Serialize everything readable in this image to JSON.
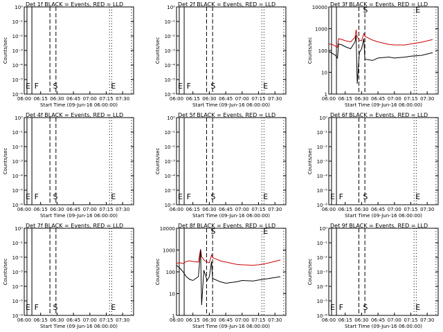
{
  "chart_data": [
    {
      "type": "line",
      "title": "Det 1f BLACK = Events, RED = LLD",
      "xlabel": "Start Time (09-Jun-16 06:00:00)",
      "ylabel": "Counts/sec",
      "yscale": "log",
      "ylim": [
        1e-06,
        1
      ],
      "ytick_labels": [
        "10⁰",
        "10⁻¹",
        "10⁻²",
        "10⁻³",
        "10⁻⁴",
        "10⁻⁵",
        "10⁻⁶"
      ],
      "ytick_values": [
        1,
        0.1,
        0.01,
        0.001,
        0.0001,
        1e-05,
        1e-06
      ],
      "xlim": [
        "06:00",
        "07:40"
      ],
      "xtick_labels": [
        "06:00",
        "06:15",
        "06:30",
        "06:45",
        "07:00",
        "07:15",
        "07:30"
      ],
      "markers": [
        {
          "label": "E",
          "time": "06:00"
        },
        {
          "label": "F",
          "time": "06:08"
        },
        {
          "label": "S",
          "time": "06:25"
        },
        {
          "label": "E",
          "time": "07:18"
        }
      ],
      "series": []
    },
    {
      "type": "line",
      "title": "Det 2f BLACK = Events, RED = LLD",
      "xlabel": "Start Time (09-Jun-16 06:00:00)",
      "ylabel": "Counts/sec",
      "yscale": "log",
      "ylim": [
        1e-06,
        1
      ],
      "ytick_labels": [
        "10⁰",
        "10⁻¹",
        "10⁻²",
        "10⁻³",
        "10⁻⁴",
        "10⁻⁵",
        "10⁻⁶"
      ],
      "ytick_values": [
        1,
        0.1,
        0.01,
        0.001,
        0.0001,
        1e-05,
        1e-06
      ],
      "xlim": [
        "06:00",
        "07:40"
      ],
      "xtick_labels": [
        "06:00",
        "06:15",
        "06:30",
        "06:45",
        "07:00",
        "07:15",
        "07:30"
      ],
      "markers": [
        {
          "label": "E",
          "time": "06:00"
        },
        {
          "label": "F",
          "time": "06:08"
        },
        {
          "label": "S",
          "time": "06:30"
        },
        {
          "label": "E",
          "time": "07:18"
        }
      ],
      "series": []
    },
    {
      "type": "line",
      "title": "Det 3f BLACK = Events, RED = LLD",
      "xlabel": "Start Time (09-Jun-16 06:00:00)",
      "ylabel": "Counts/sec",
      "yscale": "log",
      "ylim": [
        1,
        10000
      ],
      "ytick_labels": [
        "10000",
        "1000",
        "100",
        "10",
        "1"
      ],
      "ytick_values": [
        10000,
        1000,
        100,
        10,
        1
      ],
      "xlim": [
        "06:00",
        "07:40"
      ],
      "xtick_labels": [
        "06:00",
        "06:15",
        "06:30",
        "06:45",
        "07:00",
        "07:15",
        "07:30"
      ],
      "markers": [
        {
          "label": "S",
          "time": "06:30"
        },
        {
          "label": "E",
          "time": "07:18"
        }
      ],
      "series": [
        {
          "color": "#cc0000",
          "x": [
            "06:00",
            "06:03",
            "06:06",
            "06:08",
            "06:09",
            "06:12",
            "06:15",
            "06:20",
            "06:24",
            "06:25",
            "06:26",
            "06:28",
            "06:30",
            "06:32",
            "06:33",
            "06:40",
            "06:45",
            "06:55",
            "07:00",
            "07:10",
            "07:15",
            "07:25",
            "07:35"
          ],
          "values": [
            200,
            190,
            160,
            140,
            350,
            320,
            280,
            250,
            400,
            900,
            420,
            300,
            280,
            600,
            450,
            300,
            250,
            190,
            180,
            180,
            200,
            240,
            320
          ]
        },
        {
          "color": "#000000",
          "x": [
            "06:00",
            "06:03",
            "06:06",
            "06:08",
            "06:09",
            "06:12",
            "06:15",
            "06:20",
            "06:24",
            "06:25",
            "06:26",
            "06:28",
            "06:30",
            "06:32",
            "06:33",
            "06:40",
            "06:45",
            "06:55",
            "07:00",
            "07:10",
            "07:15",
            "07:25",
            "07:35"
          ],
          "values": [
            90,
            75,
            60,
            45,
            200,
            180,
            150,
            120,
            250,
            500,
            3,
            80,
            120,
            350,
            40,
            35,
            45,
            50,
            45,
            50,
            55,
            60,
            80
          ]
        }
      ]
    },
    {
      "type": "line",
      "title": "Det 4f BLACK = Events, RED = LLD",
      "xlabel": "Start Time (09-Jun-16 06:00:00)",
      "ylabel": "Counts/sec",
      "yscale": "log",
      "ylim": [
        1e-06,
        1
      ],
      "ytick_labels": [
        "10⁰",
        "10⁻¹",
        "10⁻²",
        "10⁻³",
        "10⁻⁴",
        "10⁻⁵",
        "10⁻⁶"
      ],
      "ytick_values": [
        1,
        0.1,
        0.01,
        0.001,
        0.0001,
        1e-05,
        1e-06
      ],
      "xlim": [
        "06:00",
        "07:40"
      ],
      "xtick_labels": [
        "06:00",
        "06:15",
        "06:30",
        "06:45",
        "07:00",
        "07:15",
        "07:30"
      ],
      "markers": [
        {
          "label": "E",
          "time": "06:00"
        },
        {
          "label": "F",
          "time": "06:08"
        },
        {
          "label": "S",
          "time": "06:25"
        },
        {
          "label": "E",
          "time": "07:18"
        }
      ],
      "series": []
    },
    {
      "type": "line",
      "title": "Det 5f BLACK = Events, RED = LLD",
      "xlabel": "Start Time (09-Jun-16 06:00:00)",
      "ylabel": "Counts/sec",
      "yscale": "log",
      "ylim": [
        1e-06,
        1
      ],
      "ytick_labels": [
        "10⁰",
        "10⁻¹",
        "10⁻²",
        "10⁻³",
        "10⁻⁴",
        "10⁻⁵",
        "10⁻⁶"
      ],
      "ytick_values": [
        1,
        0.1,
        0.01,
        0.001,
        0.0001,
        1e-05,
        1e-06
      ],
      "xlim": [
        "06:00",
        "07:40"
      ],
      "xtick_labels": [
        "06:00",
        "06:15",
        "06:30",
        "06:45",
        "07:00",
        "07:15",
        "07:30"
      ],
      "markers": [
        {
          "label": "E",
          "time": "06:00"
        },
        {
          "label": "F",
          "time": "06:08"
        },
        {
          "label": "S",
          "time": "06:30"
        },
        {
          "label": "E",
          "time": "07:18"
        }
      ],
      "series": []
    },
    {
      "type": "line",
      "title": "Det 6f BLACK = Events, RED = LLD",
      "xlabel": "Start Time (09-Jun-16 06:00:00)",
      "ylabel": "Counts/sec",
      "yscale": "log",
      "ylim": [
        1e-06,
        1
      ],
      "ytick_labels": [
        "10⁰",
        "10⁻¹",
        "10⁻²",
        "10⁻³",
        "10⁻⁴",
        "10⁻⁵",
        "10⁻⁶"
      ],
      "ytick_values": [
        1,
        0.1,
        0.01,
        0.001,
        0.0001,
        1e-05,
        1e-06
      ],
      "xlim": [
        "06:00",
        "07:40"
      ],
      "xtick_labels": [
        "06:00",
        "06:15",
        "06:30",
        "06:45",
        "07:00",
        "07:15",
        "07:30"
      ],
      "markers": [
        {
          "label": "E",
          "time": "06:00"
        },
        {
          "label": "F",
          "time": "06:08"
        },
        {
          "label": "S",
          "time": "06:30"
        },
        {
          "label": "E",
          "time": "07:18"
        }
      ],
      "series": []
    },
    {
      "type": "line",
      "title": "Det 7f BLACK = Events, RED = LLD",
      "xlabel": "Start Time (09-Jun-16 06:00:00)",
      "ylabel": "Counts/sec",
      "yscale": "log",
      "ylim": [
        1e-06,
        1
      ],
      "ytick_labels": [
        "10⁰",
        "10⁻¹",
        "10⁻²",
        "10⁻³",
        "10⁻⁴",
        "10⁻⁵",
        "10⁻⁶"
      ],
      "ytick_values": [
        1,
        0.1,
        0.01,
        0.001,
        0.0001,
        1e-05,
        1e-06
      ],
      "xlim": [
        "06:00",
        "07:40"
      ],
      "xtick_labels": [
        "06:00",
        "06:15",
        "06:30",
        "06:45",
        "07:00",
        "07:15",
        "07:30"
      ],
      "markers": [
        {
          "label": "E",
          "time": "06:00"
        },
        {
          "label": "F",
          "time": "06:08"
        },
        {
          "label": "S",
          "time": "06:25"
        },
        {
          "label": "E",
          "time": "07:18"
        }
      ],
      "series": []
    },
    {
      "type": "line",
      "title": "Det 8f BLACK = Events, RED = LLD",
      "xlabel": "Start Time (09-Jun-16 06:00:00)",
      "ylabel": "Counts/sec",
      "yscale": "log",
      "ylim": [
        1,
        10000
      ],
      "ytick_labels": [
        "10000",
        "1000",
        "100",
        "10",
        "1"
      ],
      "ytick_values": [
        10000,
        1000,
        100,
        10,
        1
      ],
      "xlim": [
        "06:00",
        "07:40"
      ],
      "xtick_labels": [
        "06:00",
        "06:15",
        "06:30",
        "06:45",
        "07:00",
        "07:15",
        "07:30"
      ],
      "markers": [
        {
          "label": "S",
          "time": "06:30"
        },
        {
          "label": "E",
          "time": "07:18"
        }
      ],
      "series": [
        {
          "color": "#cc0000",
          "x": [
            "06:00",
            "06:03",
            "06:06",
            "06:09",
            "06:12",
            "06:15",
            "06:20",
            "06:22",
            "06:23",
            "06:25",
            "06:28",
            "06:30",
            "06:32",
            "06:33",
            "06:40",
            "06:45",
            "06:55",
            "07:00",
            "07:10",
            "07:15",
            "07:25",
            "07:35"
          ],
          "values": [
            250,
            260,
            240,
            300,
            320,
            300,
            280,
            1100,
            500,
            350,
            280,
            260,
            600,
            450,
            320,
            280,
            220,
            210,
            200,
            210,
            260,
            350
          ]
        },
        {
          "color": "#000000",
          "x": [
            "06:00",
            "06:03",
            "06:06",
            "06:09",
            "06:12",
            "06:15",
            "06:20",
            "06:22",
            "06:23",
            "06:25",
            "06:28",
            "06:30",
            "06:32",
            "06:33",
            "06:40",
            "06:45",
            "06:55",
            "07:00",
            "07:10",
            "07:15",
            "07:25",
            "07:35"
          ],
          "values": [
            200,
            150,
            100,
            60,
            45,
            40,
            60,
            1000,
            3,
            120,
            40,
            60,
            300,
            50,
            35,
            30,
            35,
            40,
            38,
            42,
            50,
            60
          ]
        }
      ]
    },
    {
      "type": "line",
      "title": "Det 9f BLACK = Events, RED = LLD",
      "xlabel": "Start Time (09-Jun-16 06:00:00)",
      "ylabel": "Counts/sec",
      "yscale": "log",
      "ylim": [
        1e-06,
        1
      ],
      "ytick_labels": [
        "10⁰",
        "10⁻¹",
        "10⁻²",
        "10⁻³",
        "10⁻⁴",
        "10⁻⁵",
        "10⁻⁶"
      ],
      "ytick_values": [
        1,
        0.1,
        0.01,
        0.001,
        0.0001,
        1e-05,
        1e-06
      ],
      "xlim": [
        "06:00",
        "07:40"
      ],
      "xtick_labels": [
        "06:00",
        "06:15",
        "06:30",
        "06:45",
        "07:00",
        "07:15",
        "07:30"
      ],
      "markers": [
        {
          "label": "E",
          "time": "06:00"
        },
        {
          "label": "F",
          "time": "06:08"
        },
        {
          "label": "S",
          "time": "06:30"
        },
        {
          "label": "E",
          "time": "07:18"
        }
      ],
      "series": []
    }
  ]
}
